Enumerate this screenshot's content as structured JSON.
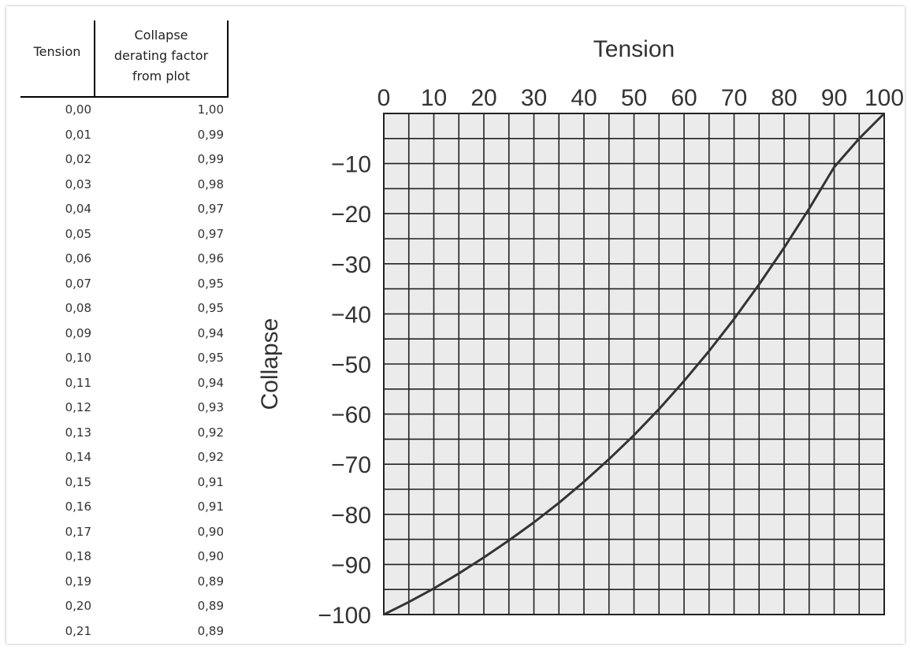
{
  "table": {
    "header_tension": "Tension",
    "header_factor_lines": [
      "Collapse",
      "derating factor",
      "from plot"
    ],
    "rows": [
      [
        "0,00",
        "1,00"
      ],
      [
        "0,01",
        "0,99"
      ],
      [
        "0,02",
        "0,99"
      ],
      [
        "0,03",
        "0,98"
      ],
      [
        "0,04",
        "0,97"
      ],
      [
        "0,05",
        "0,97"
      ],
      [
        "0,06",
        "0,96"
      ],
      [
        "0,07",
        "0,95"
      ],
      [
        "0,08",
        "0,95"
      ],
      [
        "0,09",
        "0,94"
      ],
      [
        "0,10",
        "0,95"
      ],
      [
        "0,11",
        "0,94"
      ],
      [
        "0,12",
        "0,93"
      ],
      [
        "0,13",
        "0,92"
      ],
      [
        "0,14",
        "0,92"
      ],
      [
        "0,15",
        "0,91"
      ],
      [
        "0,16",
        "0,91"
      ],
      [
        "0,17",
        "0,90"
      ],
      [
        "0,18",
        "0,90"
      ],
      [
        "0,19",
        "0,89"
      ],
      [
        "0,20",
        "0,89"
      ],
      [
        "0,21",
        "0,89"
      ]
    ]
  },
  "chart_data": {
    "type": "line",
    "title": "Tension",
    "xlabel": "Tension",
    "ylabel": "Collapse",
    "xlim": [
      0,
      100
    ],
    "ylim": [
      -100,
      0
    ],
    "x_ticks": [
      "0",
      "10",
      "20",
      "30",
      "40",
      "50",
      "60",
      "70",
      "80",
      "90",
      "100"
    ],
    "y_ticks": [
      "−10",
      "−20",
      "−30",
      "−40",
      "−50",
      "−60",
      "−70",
      "−80",
      "−90",
      "−100"
    ],
    "grid": true,
    "grid_step": 5,
    "grid_background": "#ebebeb",
    "line_color": "#333333",
    "series": [
      {
        "x": [
          0,
          5,
          10,
          15,
          20,
          25,
          30,
          35,
          40,
          45,
          50,
          55,
          60,
          65,
          70,
          75,
          80,
          85,
          90,
          95,
          100
        ],
        "y": [
          -100,
          -97.5,
          -94.8,
          -91.8,
          -88.6,
          -85.2,
          -81.6,
          -77.7,
          -73.5,
          -69.0,
          -64.2,
          -59.0,
          -53.4,
          -47.4,
          -41.0,
          -34.1,
          -26.8,
          -19.0,
          -10.7,
          -5.0,
          0
        ]
      }
    ]
  }
}
